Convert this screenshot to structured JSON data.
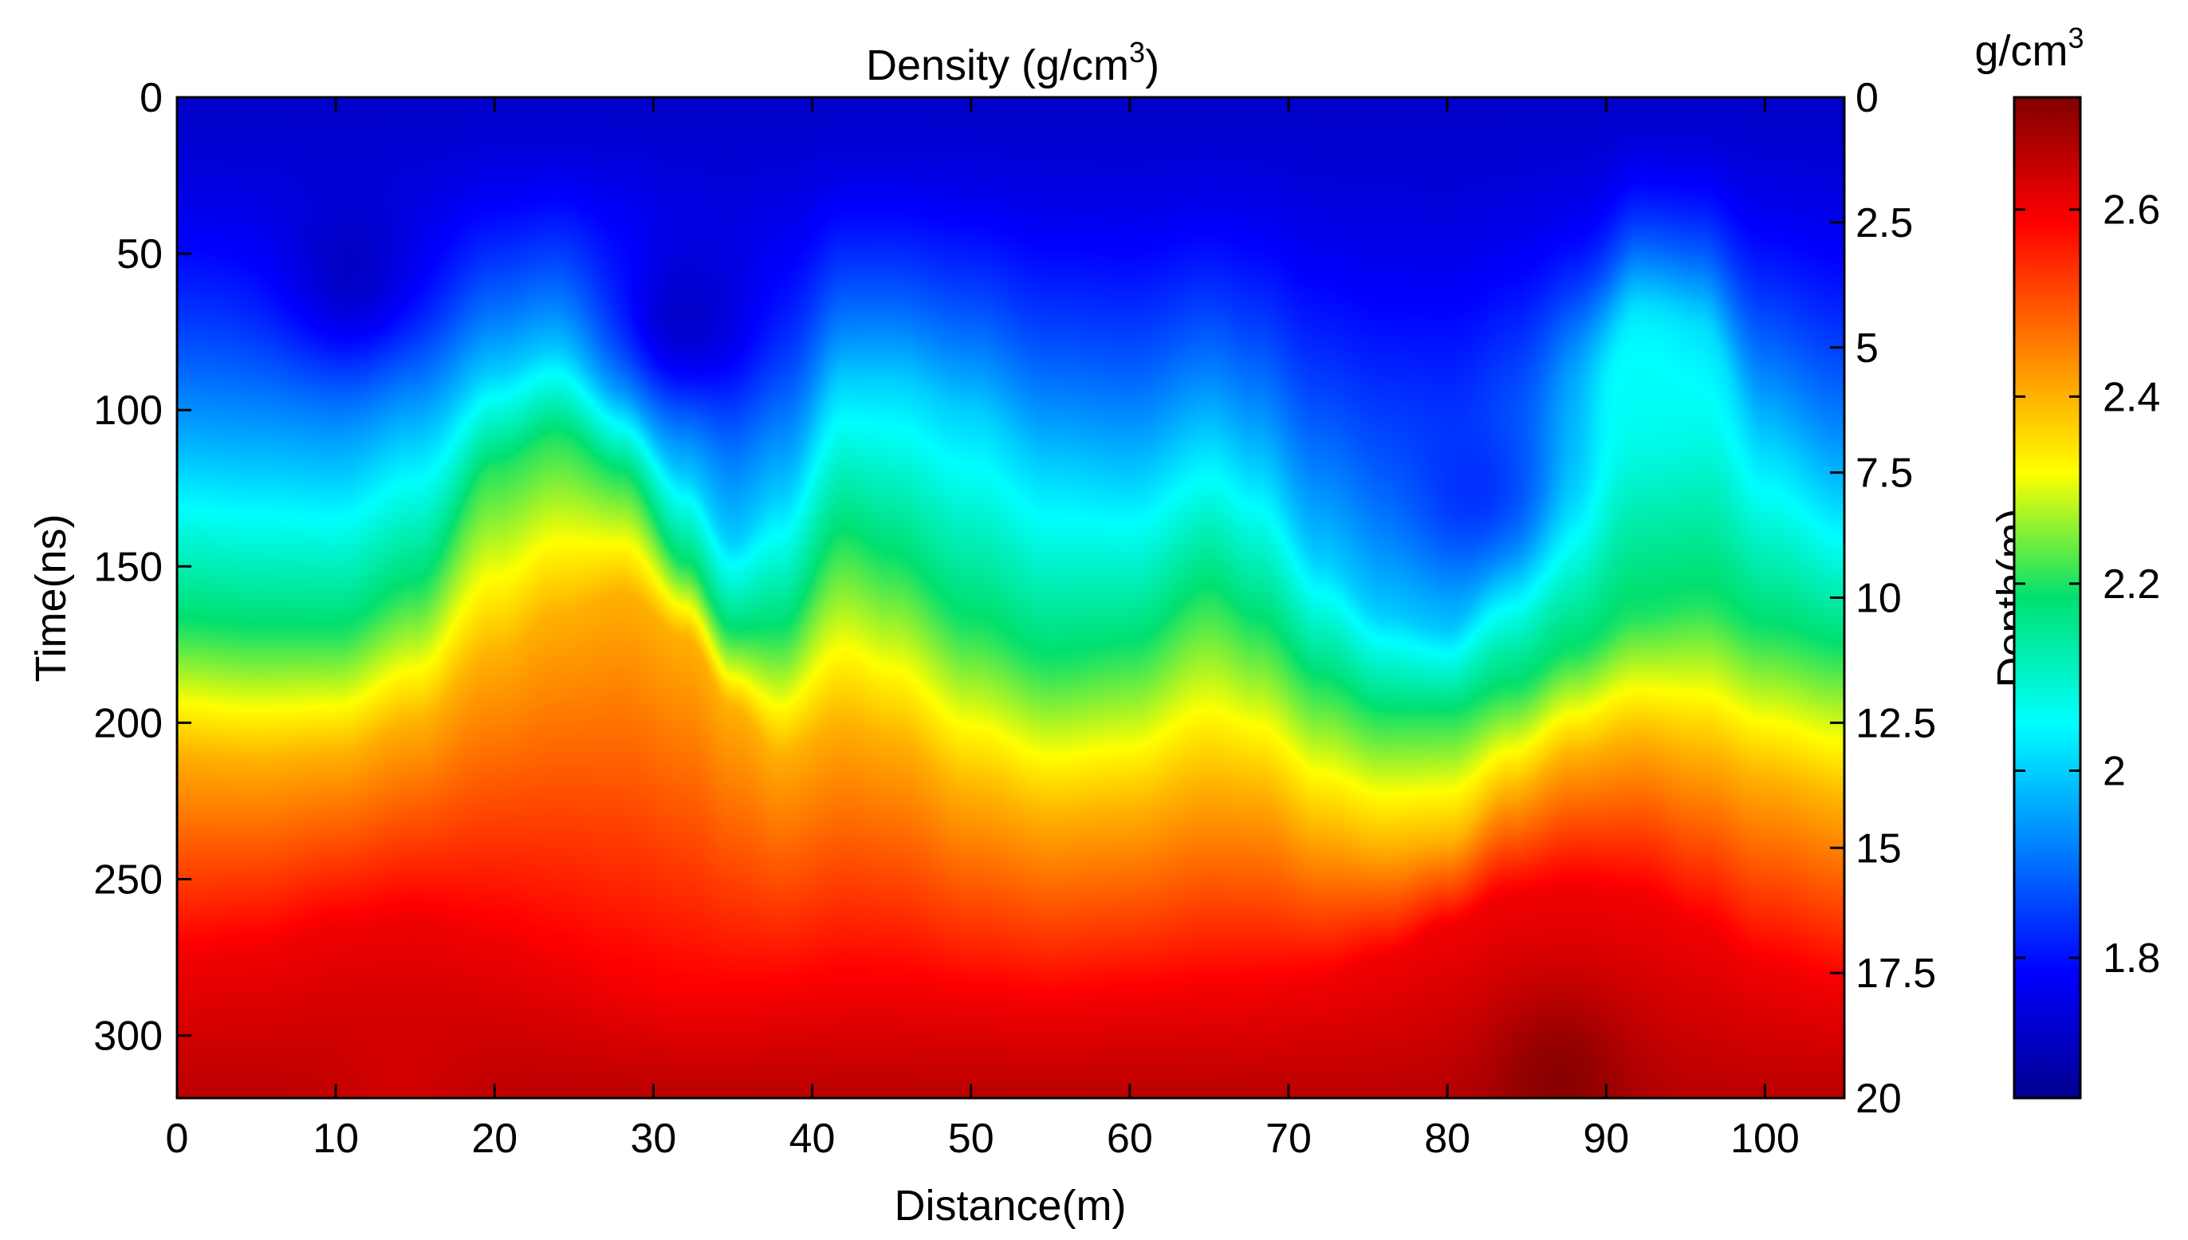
{
  "chart_data": {
    "type": "heatmap",
    "title": "Density (g/cm",
    "title_superscript": "3",
    "title_suffix": ")",
    "xlabel": "Distance(m)",
    "ylabel_left": "Time(ns)",
    "ylabel_right": "Depth(m)",
    "colorbar_label": "g/cm",
    "colorbar_label_superscript": "3",
    "xlim": [
      0,
      105
    ],
    "ylim_left": [
      0,
      320
    ],
    "ylim_right": [
      0,
      20
    ],
    "clim": [
      1.65,
      2.72
    ],
    "x_ticks": [
      0,
      10,
      20,
      30,
      40,
      50,
      60,
      70,
      80,
      90,
      100
    ],
    "y_left_ticks": [
      0,
      50,
      100,
      150,
      200,
      250,
      300
    ],
    "y_right_ticks": [
      "0",
      "2.5",
      "5",
      "7.5",
      "10",
      "12.5",
      "15",
      "17.5",
      "20"
    ],
    "colorbar_ticks": [
      "1.8",
      "2",
      "2.2",
      "2.4",
      "2.6"
    ],
    "colormap": "jet",
    "boundaries_time_ns": {
      "distance_m": [
        0,
        5,
        10,
        15,
        20,
        24,
        28,
        32,
        35,
        38,
        42,
        45,
        50,
        55,
        60,
        65,
        68,
        72,
        76,
        80,
        84,
        88,
        92,
        96,
        100,
        105
      ],
      "iso_2_0": [
        118,
        120,
        122,
        110,
        88,
        80,
        95,
        120,
        142,
        128,
        90,
        90,
        100,
        118,
        122,
        108,
        118,
        148,
        165,
        170,
        145,
        118,
        68,
        72,
        110,
        128
      ],
      "iso_2_2": [
        170,
        172,
        172,
        158,
        118,
        108,
        120,
        150,
        172,
        172,
        142,
        150,
        170,
        182,
        178,
        160,
        170,
        188,
        198,
        198,
        190,
        178,
        166,
        162,
        172,
        178
      ],
      "iso_2_4": [
        210,
        212,
        210,
        200,
        178,
        165,
        158,
        172,
        195,
        210,
        200,
        205,
        222,
        230,
        228,
        220,
        222,
        235,
        240,
        238,
        222,
        210,
        205,
        210,
        218,
        225
      ],
      "iso_2_6": [
        275,
        272,
        265,
        262,
        268,
        276,
        285,
        290,
        290,
        288,
        285,
        285,
        288,
        290,
        288,
        286,
        285,
        282,
        275,
        265,
        255,
        252,
        255,
        265,
        278,
        285
      ]
    },
    "anomalies": [
      {
        "distance_m": 11,
        "time_ns": 55,
        "density": 1.7
      },
      {
        "distance_m": 32,
        "time_ns": 70,
        "density": 1.7
      },
      {
        "distance_m": 82,
        "time_ns": 125,
        "density": 1.82
      },
      {
        "distance_m": 92,
        "time_ns": 92,
        "density": 2.06
      },
      {
        "distance_m": 87,
        "time_ns": 315,
        "density": 2.72
      },
      {
        "distance_m": 14,
        "time_ns": 312,
        "density": 2.63
      }
    ]
  }
}
